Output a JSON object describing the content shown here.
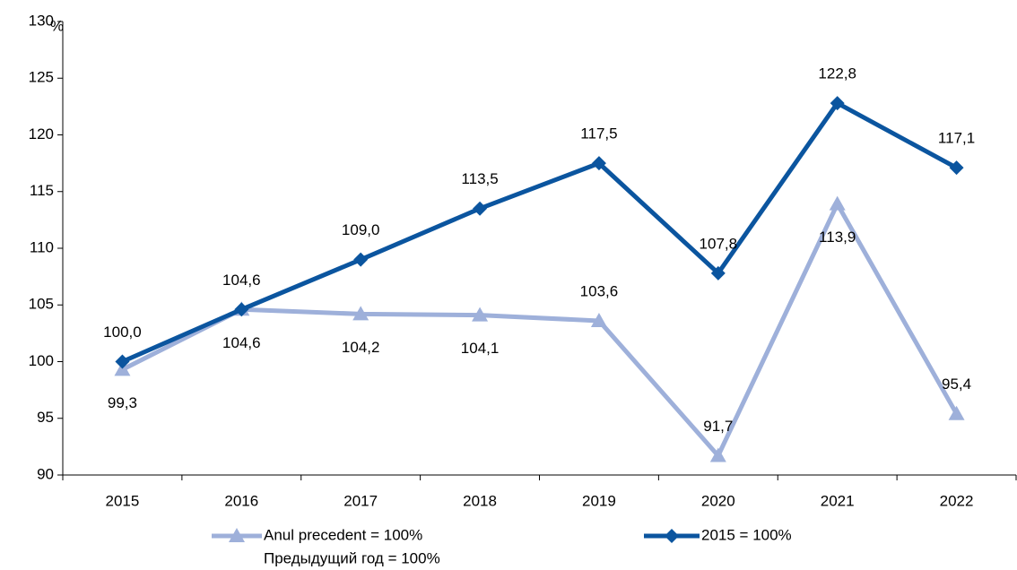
{
  "chart_data": {
    "type": "line",
    "y_unit": "%",
    "categories": [
      "2015",
      "2016",
      "2017",
      "2018",
      "2019",
      "2020",
      "2021",
      "2022"
    ],
    "series": [
      {
        "name": "Anul precedent = 100%",
        "name_ru": "Предыдущий год = 100%",
        "color": "#9eb0da",
        "marker": "triangle",
        "values": [
          99.3,
          104.6,
          104.2,
          104.1,
          103.6,
          91.7,
          113.9,
          95.4
        ],
        "value_labels": [
          "99,3",
          "104,6",
          "104,2",
          "104,1",
          "103,6",
          "91,7",
          "113,9",
          "95,4"
        ]
      },
      {
        "name": "2015 = 100%",
        "color": "#0b559f",
        "marker": "diamond",
        "values": [
          100.0,
          104.6,
          109.0,
          113.5,
          117.5,
          107.8,
          122.8,
          117.1
        ],
        "value_labels": [
          "100,0",
          "104,6",
          "109,0",
          "113,5",
          "117,5",
          "107,8",
          "122,8",
          "117,1"
        ]
      }
    ],
    "ylim": [
      90,
      130
    ],
    "yticks": [
      90,
      95,
      100,
      105,
      110,
      115,
      120,
      125,
      130
    ],
    "grid": false
  }
}
